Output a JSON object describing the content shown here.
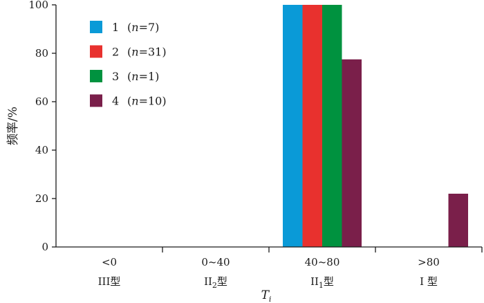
{
  "chart_data": {
    "type": "bar",
    "ylabel": "频率/%",
    "xlabel_main": "T",
    "xlabel_sub": "i",
    "ylim": [
      0,
      100
    ],
    "yticks": [
      0,
      20,
      40,
      60,
      80,
      100
    ],
    "categories": [
      {
        "range": "<0",
        "type_main": "III",
        "type_sub": "",
        "type_suffix": "型"
      },
      {
        "range": "0~40",
        "type_main": "II",
        "type_sub": "2",
        "type_suffix": "型"
      },
      {
        "range": "40~80",
        "type_main": "II",
        "type_sub": "1",
        "type_suffix": "型"
      },
      {
        "range": ">80",
        "type_main": "I",
        "type_sub": "",
        "type_suffix": " 型"
      }
    ],
    "series": [
      {
        "name": "1",
        "n_label": "(n=7)",
        "n_prefix": "(",
        "n_var": "n",
        "n_rest": "=7)",
        "color": "#0a9ad7",
        "values": [
          0,
          0,
          100,
          0
        ]
      },
      {
        "name": "2",
        "n_label": "(n=31)",
        "n_prefix": "(",
        "n_var": "n",
        "n_rest": "=31)",
        "color": "#e8312e",
        "values": [
          0,
          0,
          100,
          0
        ]
      },
      {
        "name": "3",
        "n_label": "(n=1)",
        "n_prefix": "(",
        "n_var": "n",
        "n_rest": "=1)",
        "color": "#00923f",
        "values": [
          0,
          0,
          100,
          0
        ]
      },
      {
        "name": "4",
        "n_label": "(n=10)",
        "n_prefix": "(",
        "n_var": "n",
        "n_rest": "=10)",
        "color": "#7a1f4a",
        "values": [
          0,
          0,
          77.5,
          22
        ]
      }
    ],
    "legend_position": "top-left",
    "grid": false
  }
}
